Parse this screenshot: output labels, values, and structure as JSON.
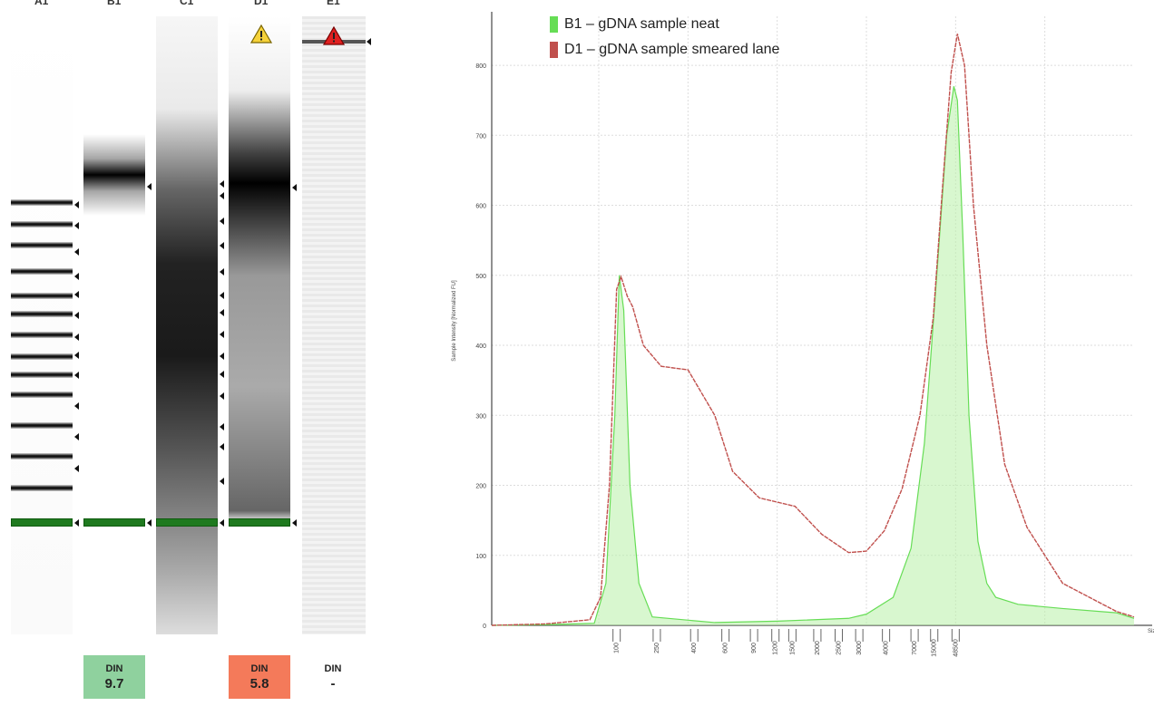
{
  "gel": {
    "lanes": [
      {
        "id": "A1",
        "din_label": "",
        "din_value": ""
      },
      {
        "id": "B1",
        "din_label": "DIN",
        "din_value": "9.7"
      },
      {
        "id": "C1",
        "din_label": "",
        "din_value": ""
      },
      {
        "id": "D1",
        "din_label": "DIN",
        "din_value": "5.8"
      },
      {
        "id": "E1",
        "din_label": "DIN",
        "din_value": "-"
      }
    ],
    "din_colors": {
      "B1": "#8fd19e",
      "D1": "#f47a5a",
      "E1": "#ffffff"
    },
    "warning_icons": {
      "D1": "warning-yellow",
      "E1": "warning-red"
    }
  },
  "chart_data": {
    "type": "area",
    "title": "",
    "xlabel": "Size [bp]",
    "ylabel": "Sample Intensity [Normalized FU]",
    "ylim": [
      0,
      870
    ],
    "yticks": [
      0,
      100,
      200,
      300,
      400,
      500,
      600,
      700,
      800
    ],
    "xtick_labels": [
      "100",
      "250",
      "400",
      "600",
      "900",
      "1200",
      "1500",
      "2000",
      "2500",
      "3000",
      "4000",
      "7000",
      "15000",
      "48500"
    ],
    "grid": true,
    "legend_position": "top-left",
    "series": [
      {
        "name": "B1 – gDNA sample neat",
        "color": "#66dd55",
        "x": [
          0,
          60,
          115,
          128,
          138,
          143,
          148,
          155,
          165,
          180,
          250,
          320,
          400,
          420,
          450,
          470,
          485,
          500,
          510,
          518,
          522,
          528,
          535,
          545,
          555,
          565,
          590,
          640,
          700,
          720
        ],
        "y": [
          0,
          1,
          3,
          60,
          300,
          500,
          450,
          200,
          60,
          12,
          4,
          6,
          10,
          16,
          40,
          110,
          260,
          520,
          700,
          770,
          750,
          560,
          300,
          120,
          60,
          40,
          30,
          24,
          18,
          10
        ]
      },
      {
        "name": "D1 – gDNA sample smeared lane",
        "color": "#c0504d",
        "x": [
          0,
          60,
          110,
          122,
          132,
          140,
          145,
          152,
          158,
          170,
          190,
          220,
          250,
          270,
          300,
          340,
          370,
          400,
          420,
          440,
          460,
          480,
          495,
          505,
          515,
          522,
          530,
          540,
          555,
          575,
          600,
          640,
          700,
          720
        ],
        "y": [
          0,
          2,
          8,
          40,
          200,
          480,
          498,
          470,
          455,
          400,
          370,
          365,
          300,
          220,
          182,
          170,
          130,
          104,
          106,
          135,
          195,
          300,
          440,
          620,
          790,
          845,
          800,
          600,
          400,
          230,
          140,
          60,
          20,
          12
        ]
      }
    ]
  }
}
